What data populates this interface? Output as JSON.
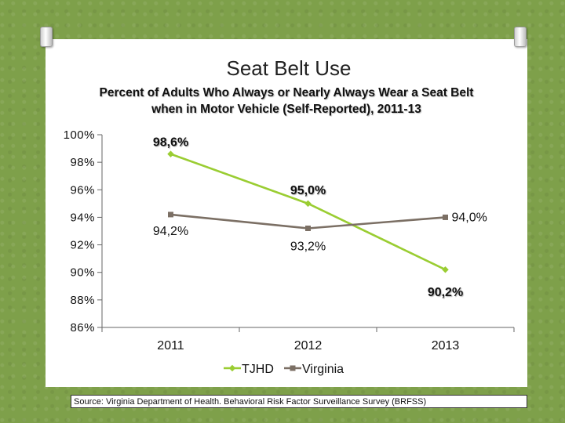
{
  "chart_data": {
    "type": "line",
    "title": "Seat Belt Use",
    "subtitle": "Percent of Adults Who Always or Nearly Always Wear a Seat Belt when in Motor Vehicle  (Self-Reported), 2011-13",
    "categories": [
      "2011",
      "2012",
      "2013"
    ],
    "series": [
      {
        "name": "TJHD",
        "values": [
          98.6,
          95.0,
          90.2
        ],
        "labels": [
          "98,6%",
          "95,0%",
          "90,2%"
        ],
        "color": "#9acd32"
      },
      {
        "name": "Virginia",
        "values": [
          94.2,
          93.2,
          94.0
        ],
        "labels": [
          "94,2%",
          "93,2%",
          "94,0%"
        ],
        "color": "#7b6f64"
      }
    ],
    "ylim": [
      86,
      100
    ],
    "yticks": [
      {
        "value": 100,
        "label": "100%"
      },
      {
        "value": 98,
        "label": "98%"
      },
      {
        "value": 96,
        "label": "96%"
      },
      {
        "value": 94,
        "label": "94%"
      },
      {
        "value": 92,
        "label": "92%"
      },
      {
        "value": 90,
        "label": "90%"
      },
      {
        "value": 88,
        "label": "88%"
      },
      {
        "value": 86,
        "label": "86%"
      }
    ],
    "xlabel": "",
    "ylabel": "",
    "legend_position": "bottom"
  },
  "source_text": "Source: Virginia Department of Health. Behavioral Risk Factor Surveillance Survey (BRFSS)"
}
